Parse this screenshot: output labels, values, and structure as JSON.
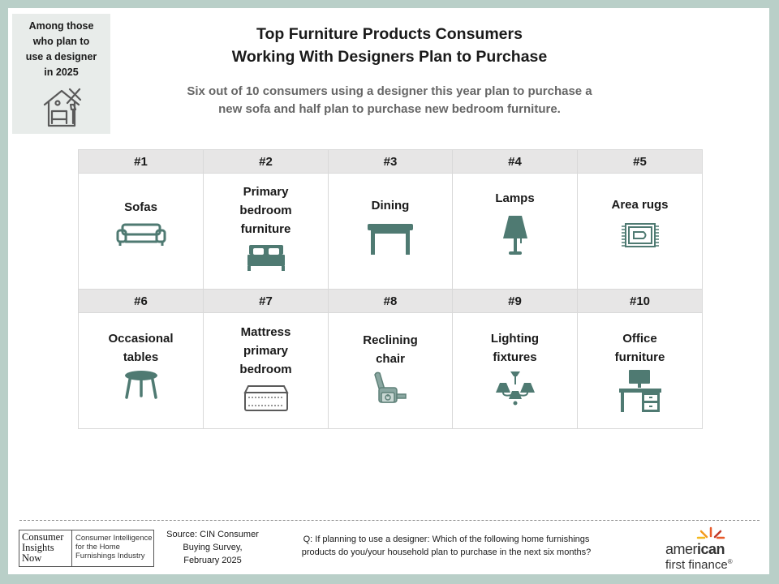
{
  "badge": {
    "text": "Among those\nwho plan to\nuse a designer\nin 2025",
    "icon": "designer-house-icon"
  },
  "title": "Top Furniture Products Consumers\nWorking With Designers Plan to Purchase",
  "subtitle": "Six out of 10 consumers using a designer this year plan to purchase a\nnew sofa and half plan to purchase new bedroom furniture.",
  "colors": {
    "icon": "#4f7a72",
    "header_bg": "#e7e6e6",
    "background": "#b9cfc8"
  },
  "rankings": [
    {
      "rank": "#1",
      "label": "Sofas",
      "icon": "sofa-icon"
    },
    {
      "rank": "#2",
      "label": "Primary\nbedroom\nfurniture",
      "icon": "bed-icon"
    },
    {
      "rank": "#3",
      "label": "Dining",
      "icon": "dining-table-icon"
    },
    {
      "rank": "#4",
      "label": "Lamps",
      "icon": "lamp-icon"
    },
    {
      "rank": "#5",
      "label": "Area rugs",
      "icon": "rug-icon"
    },
    {
      "rank": "#6",
      "label": "Occasional\ntables",
      "icon": "side-table-icon"
    },
    {
      "rank": "#7",
      "label": "Mattress\nprimary\nbedroom",
      "icon": "mattress-icon"
    },
    {
      "rank": "#8",
      "label": "Reclining\nchair",
      "icon": "recliner-icon"
    },
    {
      "rank": "#9",
      "label": "Lighting\nfixtures",
      "icon": "chandelier-icon"
    },
    {
      "rank": "#10",
      "label": "Office\nfurniture",
      "icon": "desk-icon"
    }
  ],
  "footer": {
    "cin_logo": {
      "words": [
        "Consumer",
        "Insights",
        "Now"
      ],
      "tagline": "Consumer Intelligence\nfor the Home\nFurnishings Industry"
    },
    "source": "Source: CIN Consumer\nBuying Survey,\nFebruary 2025",
    "question": "Q: If planning to use a designer: Which of the following home furnishings\nproducts do you/your household plan to purchase in the next six months?",
    "aff_logo": {
      "part1": "amer",
      "part2": "ican",
      "line2": "first finance",
      "mark": "®"
    }
  }
}
